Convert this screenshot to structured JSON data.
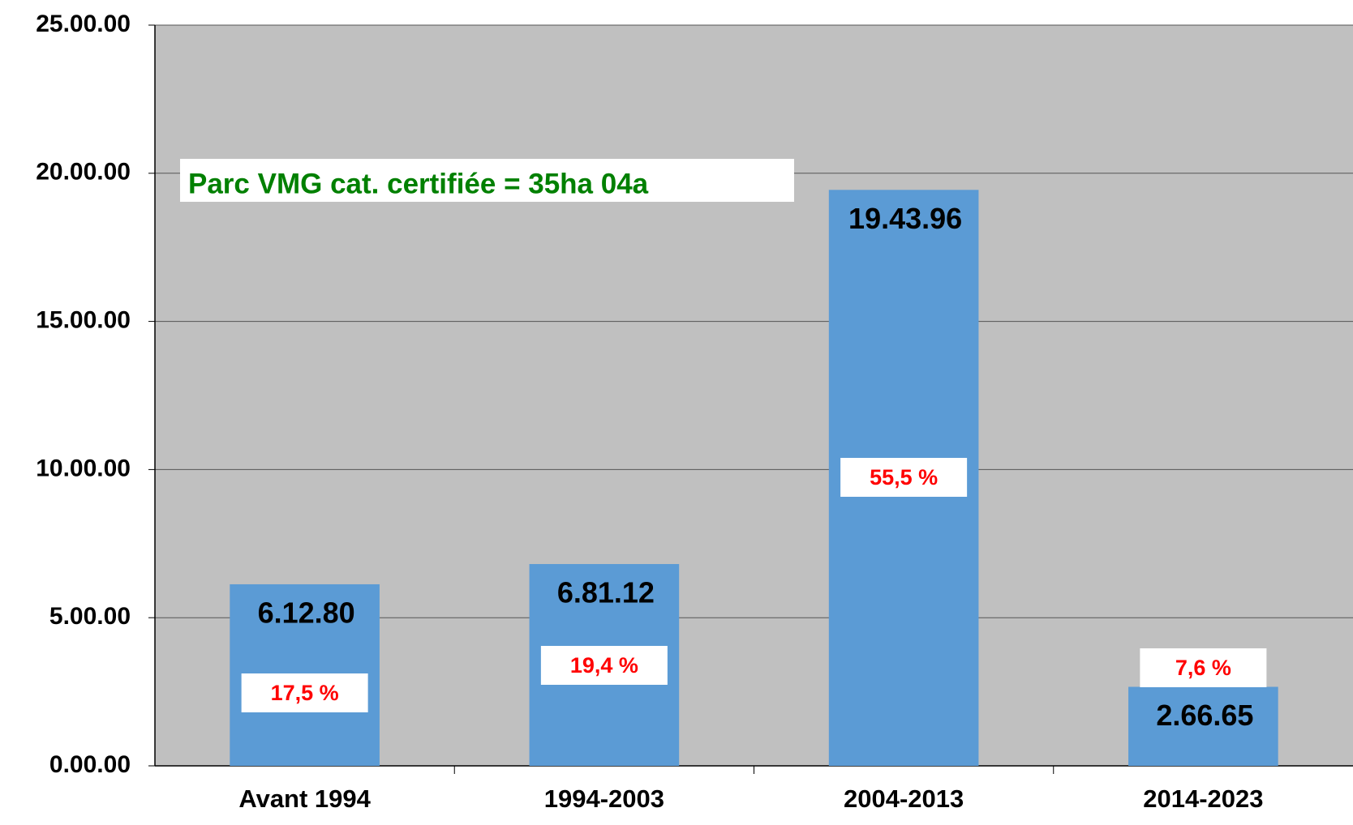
{
  "chart_data": {
    "type": "bar",
    "annotation": "Parc VMG cat. certifiée = 35ha 04a",
    "categories": [
      "Avant 1994",
      "1994-2003",
      "2004-2013",
      "2014-2023"
    ],
    "values": [
      6.128,
      6.8112,
      19.4396,
      2.6665
    ],
    "value_labels": [
      "6.12.80",
      "6.81.12",
      "19.43.96",
      "2.66.65"
    ],
    "share_labels": [
      "17,5 %",
      "19,4 %",
      "55,5 %",
      "7,6 %"
    ],
    "color": "#5b9bd5",
    "ylim": [
      0,
      25
    ],
    "yticks": [
      {
        "value": 0,
        "label": "0.00.00"
      },
      {
        "value": 5,
        "label": "5.00.00"
      },
      {
        "value": 10,
        "label": "10.00.00"
      },
      {
        "value": 15,
        "label": "15.00.00"
      },
      {
        "value": 20,
        "label": "20.00.00"
      },
      {
        "value": 25,
        "label": "25.00.00"
      }
    ],
    "grid": true
  }
}
